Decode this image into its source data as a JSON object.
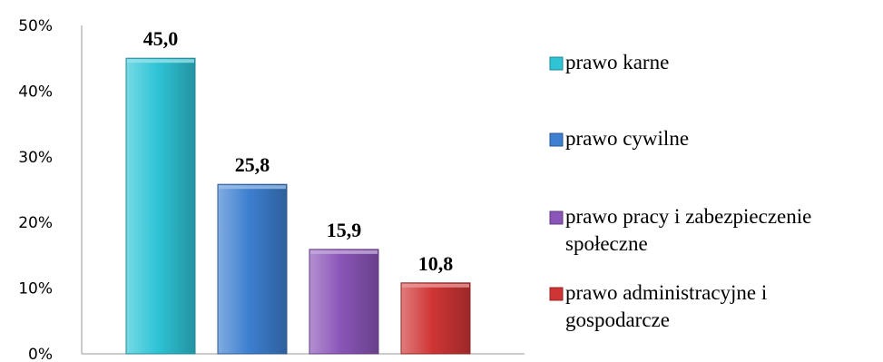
{
  "chart_data": {
    "type": "bar",
    "categories": [
      "prawo karne",
      "prawo cywilne",
      "prawo pracy i zabezpieczenie społeczne",
      "prawo administracyjne i gospodarcze"
    ],
    "values": [
      45.0,
      25.8,
      15.9,
      10.8
    ],
    "data_labels": [
      "45,0",
      "25,8",
      "15,9",
      "10,8"
    ],
    "y_ticks": [
      "0%",
      "10%",
      "20%",
      "30%",
      "40%",
      "50%"
    ],
    "ylim": [
      0,
      50
    ],
    "colors": [
      "#2ec4d6",
      "#3d7fd0",
      "#8a55b8",
      "#d03535"
    ],
    "legend": {
      "position": "right",
      "entries": [
        [
          "prawo karne"
        ],
        [
          "prawo cywilne"
        ],
        [
          "prawo pracy i zabezpieczenie",
          "społeczne"
        ],
        [
          "prawo administracyjne i",
          "gospodarcze"
        ]
      ]
    },
    "grid": false,
    "title": "",
    "xlabel": "",
    "ylabel": ""
  }
}
